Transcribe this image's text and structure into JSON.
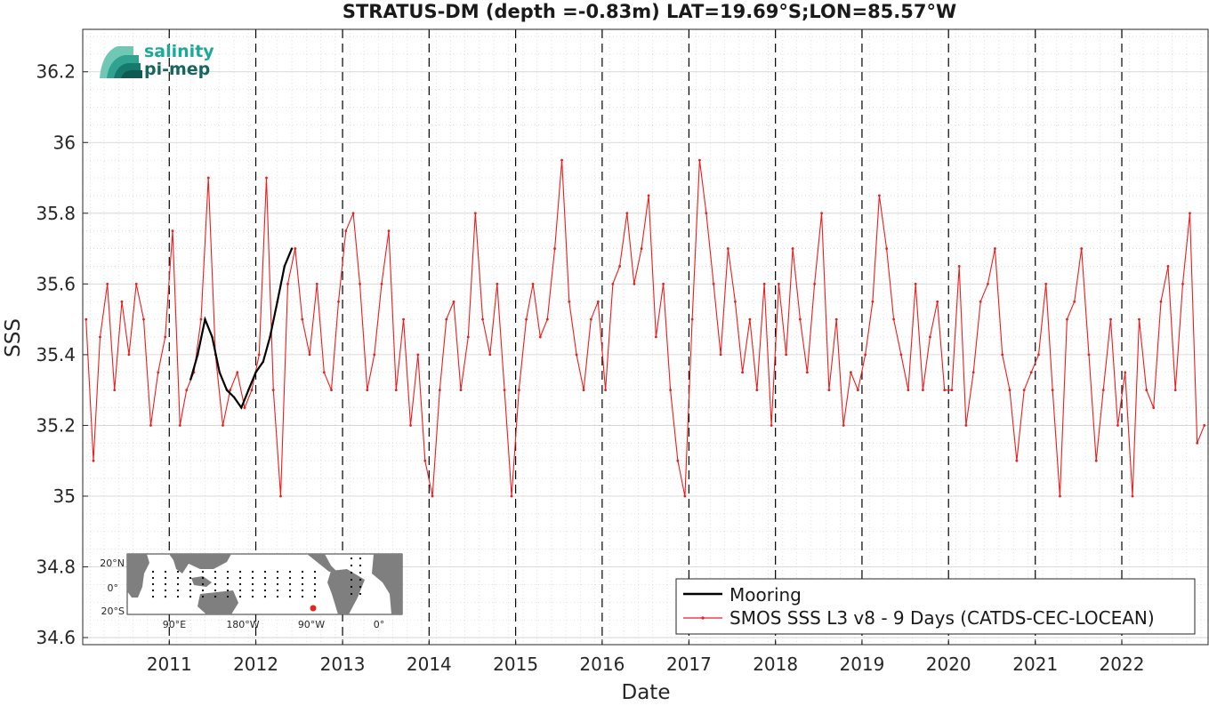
{
  "chart_data": {
    "type": "line",
    "title": "STRATUS-DM (depth =-0.83m) LAT=19.69°S;LON=85.57°W",
    "xlabel": "Date",
    "ylabel": "SSS",
    "xlim": [
      "2010-01-01",
      "2022-12-31"
    ],
    "ylim": [
      34.58,
      36.32
    ],
    "x_ticks": [
      "2011",
      "2012",
      "2013",
      "2014",
      "2015",
      "2016",
      "2017",
      "2018",
      "2019",
      "2020",
      "2021",
      "2022"
    ],
    "y_ticks": [
      "34.6",
      "34.8",
      "35",
      "35.2",
      "35.4",
      "35.6",
      "35.8",
      "36",
      "36.2"
    ],
    "y_tick_values": [
      34.6,
      34.8,
      35.0,
      35.2,
      35.4,
      35.6,
      35.8,
      36.0,
      36.2
    ],
    "grid": true,
    "year_separators": "dashed black vertical lines at each Jan 1",
    "legend_position": "bottom-right",
    "series": [
      {
        "name": "Mooring",
        "color": "#000000",
        "x": [
          "2011-04-01",
          "2011-05-01",
          "2011-06-01",
          "2011-07-01",
          "2011-08-01",
          "2011-09-01",
          "2011-10-01",
          "2011-11-01",
          "2011-12-01",
          "2012-01-01",
          "2012-02-01",
          "2012-03-01",
          "2012-04-01",
          "2012-05-01",
          "2012-06-01"
        ],
        "y": [
          35.33,
          35.4,
          35.5,
          35.45,
          35.35,
          35.3,
          35.28,
          35.25,
          35.3,
          35.35,
          35.38,
          35.45,
          35.55,
          35.65,
          35.7
        ]
      },
      {
        "name": "SMOS SSS L3 v8 - 9 Days (CATDS-CEC-LOCEAN)",
        "color": "#ee1c1c",
        "x": [
          "2010-01-15",
          "2010-02-15",
          "2010-03-15",
          "2010-04-15",
          "2010-05-15",
          "2010-06-15",
          "2010-07-15",
          "2010-08-15",
          "2010-09-15",
          "2010-10-15",
          "2010-11-15",
          "2010-12-15",
          "2011-01-15",
          "2011-02-15",
          "2011-03-15",
          "2011-04-15",
          "2011-05-15",
          "2011-06-15",
          "2011-07-15",
          "2011-08-15",
          "2011-09-15",
          "2011-10-15",
          "2011-11-15",
          "2011-12-15",
          "2012-01-15",
          "2012-02-15",
          "2012-03-15",
          "2012-04-15",
          "2012-05-15",
          "2012-06-15",
          "2012-07-15",
          "2012-08-15",
          "2012-09-15",
          "2012-10-15",
          "2012-11-15",
          "2012-12-15",
          "2013-01-15",
          "2013-02-15",
          "2013-03-15",
          "2013-04-15",
          "2013-05-15",
          "2013-06-15",
          "2013-07-15",
          "2013-08-15",
          "2013-09-15",
          "2013-10-15",
          "2013-11-15",
          "2013-12-15",
          "2014-01-15",
          "2014-02-15",
          "2014-03-15",
          "2014-04-15",
          "2014-05-15",
          "2014-06-15",
          "2014-07-15",
          "2014-08-15",
          "2014-09-15",
          "2014-10-15",
          "2014-11-15",
          "2014-12-15",
          "2015-01-15",
          "2015-02-15",
          "2015-03-15",
          "2015-04-15",
          "2015-05-15",
          "2015-06-15",
          "2015-07-15",
          "2015-08-15",
          "2015-09-15",
          "2015-10-15",
          "2015-11-15",
          "2015-12-15",
          "2016-01-15",
          "2016-02-15",
          "2016-03-15",
          "2016-04-15",
          "2016-05-15",
          "2016-06-15",
          "2016-07-15",
          "2016-08-15",
          "2016-09-15",
          "2016-10-15",
          "2016-11-15",
          "2016-12-15",
          "2017-01-15",
          "2017-02-15",
          "2017-03-15",
          "2017-04-15",
          "2017-05-15",
          "2017-06-15",
          "2017-07-15",
          "2017-08-15",
          "2017-09-15",
          "2017-10-15",
          "2017-11-15",
          "2017-12-15",
          "2018-01-15",
          "2018-02-15",
          "2018-03-15",
          "2018-04-15",
          "2018-05-15",
          "2018-06-15",
          "2018-07-15",
          "2018-08-15",
          "2018-09-15",
          "2018-10-15",
          "2018-11-15",
          "2018-12-15",
          "2019-01-15",
          "2019-02-15",
          "2019-03-15",
          "2019-04-15",
          "2019-05-15",
          "2019-06-15",
          "2019-07-15",
          "2019-08-15",
          "2019-09-15",
          "2019-10-15",
          "2019-11-15",
          "2019-12-15",
          "2020-01-15",
          "2020-02-15",
          "2020-03-15",
          "2020-04-15",
          "2020-05-15",
          "2020-06-15",
          "2020-07-15",
          "2020-08-15",
          "2020-09-15",
          "2020-10-15",
          "2020-11-15",
          "2020-12-15",
          "2021-01-15",
          "2021-02-15",
          "2021-03-15",
          "2021-04-15",
          "2021-05-15",
          "2021-06-15",
          "2021-07-15",
          "2021-08-15",
          "2021-09-15",
          "2021-10-15",
          "2021-11-15",
          "2021-12-15",
          "2022-01-15",
          "2022-02-15",
          "2022-03-15",
          "2022-04-15",
          "2022-05-15",
          "2022-06-15",
          "2022-07-15",
          "2022-08-15",
          "2022-09-15",
          "2022-10-15",
          "2022-11-15",
          "2022-12-15"
        ],
        "y": [
          35.5,
          35.1,
          35.45,
          35.6,
          35.3,
          35.55,
          35.4,
          35.6,
          35.5,
          35.2,
          35.35,
          35.45,
          35.75,
          35.2,
          35.3,
          35.35,
          35.5,
          35.9,
          35.4,
          35.2,
          35.3,
          35.35,
          35.25,
          35.3,
          35.4,
          35.9,
          35.3,
          35.0,
          35.6,
          35.7,
          35.5,
          35.4,
          35.6,
          35.35,
          35.3,
          35.55,
          35.75,
          35.8,
          35.6,
          35.3,
          35.4,
          35.6,
          35.75,
          35.3,
          35.5,
          35.2,
          35.4,
          35.1,
          35.0,
          35.3,
          35.5,
          35.55,
          35.3,
          35.45,
          35.8,
          35.5,
          35.4,
          35.6,
          35.3,
          35.0,
          35.3,
          35.5,
          35.6,
          35.45,
          35.5,
          35.7,
          35.95,
          35.55,
          35.4,
          35.3,
          35.5,
          35.55,
          35.3,
          35.6,
          35.65,
          35.8,
          35.6,
          35.7,
          35.85,
          35.45,
          35.6,
          35.3,
          35.1,
          35.0,
          35.5,
          35.95,
          35.8,
          35.6,
          35.4,
          35.7,
          35.55,
          35.35,
          35.5,
          35.3,
          35.6,
          35.2,
          35.6,
          35.4,
          35.7,
          35.5,
          35.35,
          35.6,
          35.8,
          35.3,
          35.5,
          35.2,
          35.35,
          35.3,
          35.4,
          35.55,
          35.85,
          35.7,
          35.5,
          35.4,
          35.3,
          35.6,
          35.3,
          35.45,
          35.55,
          35.3,
          35.3,
          35.65,
          35.2,
          35.35,
          35.55,
          35.6,
          35.7,
          35.4,
          35.3,
          35.1,
          35.3,
          35.35,
          35.4,
          35.6,
          35.3,
          35.0,
          35.5,
          35.55,
          35.7,
          35.4,
          35.1,
          35.3,
          35.5,
          35.2,
          35.35,
          35.0,
          35.5,
          35.3,
          35.25,
          35.55,
          35.65,
          35.3,
          35.6,
          35.8,
          35.15,
          35.2
        ]
      }
    ]
  },
  "legend": {
    "mooring_label": "Mooring",
    "smos_label": "SMOS SSS L3 v8 - 9 Days (CATDS-CEC-LOCEAN)"
  },
  "logo": {
    "line1": "salinity",
    "line2": "pi-mep"
  },
  "inset_map": {
    "lat_labels": [
      "20°N",
      "0°",
      "20°S"
    ],
    "lon_labels": [
      "90°E",
      "180°W",
      "90°W",
      "0°"
    ],
    "marker_color": "#e8221c"
  }
}
